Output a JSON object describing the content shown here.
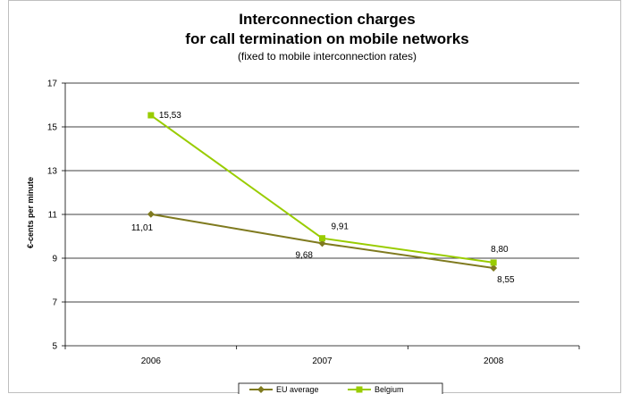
{
  "chart_data": {
    "type": "line",
    "title_line1": "Interconnection charges",
    "title_line2": "for call termination on mobile networks",
    "subtitle": "(fixed to mobile interconnection rates)",
    "ylabel": "€-cents per minute",
    "xlabel": "",
    "categories": [
      "2006",
      "2007",
      "2008"
    ],
    "ylim": [
      5,
      17
    ],
    "yticks": [
      5,
      7,
      9,
      11,
      13,
      15,
      17
    ],
    "grid": true,
    "legend_position": "bottom",
    "series": [
      {
        "name": "EU average",
        "values": [
          11.01,
          9.68,
          8.55
        ],
        "labels": [
          "11,01",
          "9,68",
          "8,55"
        ],
        "color": "#7f7a1f",
        "marker": "diamond"
      },
      {
        "name": "Belgium",
        "values": [
          15.53,
          9.91,
          8.8
        ],
        "labels": [
          "15,53",
          "9,91",
          "8,80"
        ],
        "color": "#99cc00",
        "marker": "square"
      }
    ]
  }
}
